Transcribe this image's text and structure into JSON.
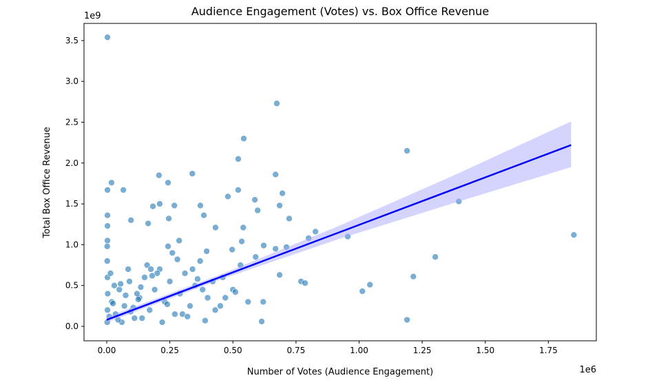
{
  "chart_data": {
    "type": "scatter",
    "title": "Audience Engagement (Votes) vs. Box Office Revenue",
    "x_label": "Number of Votes (Audience Engagement)",
    "y_label": "Total Box Office Revenue",
    "x_offset_label": "1e6",
    "y_offset_label": "1e9",
    "xlim": [
      -90000,
      1940000
    ],
    "ylim": [
      -177000000,
      3710000000
    ],
    "xticks": [
      {
        "value": 0,
        "label": "0.00"
      },
      {
        "value": 250000,
        "label": "0.25"
      },
      {
        "value": 500000,
        "label": "0.50"
      },
      {
        "value": 750000,
        "label": "0.75"
      },
      {
        "value": 1000000,
        "label": "1.00"
      },
      {
        "value": 1250000,
        "label": "1.25"
      },
      {
        "value": 1500000,
        "label": "1.50"
      },
      {
        "value": 1750000,
        "label": "1.75"
      }
    ],
    "yticks": [
      {
        "value": 0,
        "label": "0.0"
      },
      {
        "value": 500000000,
        "label": "0.5"
      },
      {
        "value": 1000000000,
        "label": "1.0"
      },
      {
        "value": 1500000000,
        "label": "1.5"
      },
      {
        "value": 2000000000,
        "label": "2.0"
      },
      {
        "value": 2500000000,
        "label": "2.5"
      },
      {
        "value": 3000000000,
        "label": "3.0"
      },
      {
        "value": 3500000000,
        "label": "3.5"
      }
    ],
    "series": [
      {
        "color": "#1f77b4",
        "x": [
          3000,
          674000,
          543000,
          1190000,
          339000,
          521000,
          207000,
          243000,
          19000,
          3000,
          66000,
          521000,
          669000,
          696000,
          587000,
          480000,
          1395000,
          685000,
          371000,
          268000,
          210000,
          183000,
          598000,
          723000,
          96000,
          164000,
          246000,
          385000,
          3000,
          3000,
          541000,
          431000,
          827000,
          1851000,
          955000,
          800000,
          287000,
          3000,
          2000,
          243000,
          535000,
          622000,
          712000,
          669000,
          1302000,
          497000,
          396000,
          1215000,
          685000,
          770000,
          786000,
          1043000,
          1013000,
          1190000,
          614000,
          390000,
          2000,
          3000,
          4000,
          3000,
          2000,
          20000,
          35000,
          50000,
          70000,
          90000,
          110000,
          130000,
          150000,
          170000,
          190000,
          210000,
          230000,
          250000,
          270000,
          290000,
          310000,
          330000,
          350000,
          370000,
          400000,
          430000,
          460000,
          500000,
          530000,
          560000,
          590000,
          30000,
          60000,
          85000,
          120000,
          140000,
          160000,
          200000,
          220000,
          260000,
          300000,
          340000,
          380000,
          420000,
          470000,
          15000,
          45000,
          75000,
          105000,
          135000,
          180000,
          240000,
          280000,
          320000,
          360000,
          450000,
          510000,
          620000,
          10000,
          25000,
          55000,
          95000,
          125000,
          175000
        ],
        "y": [
          3540000000,
          2730000000,
          2300000000,
          2150000000,
          1870000000,
          2050000000,
          1850000000,
          1760000000,
          1760000000,
          1670000000,
          1670000000,
          1670000000,
          1860000000,
          1630000000,
          1550000000,
          1590000000,
          1530000000,
          1480000000,
          1480000000,
          1480000000,
          1500000000,
          1470000000,
          1420000000,
          1320000000,
          1300000000,
          1260000000,
          1320000000,
          1360000000,
          1360000000,
          1230000000,
          1210000000,
          1210000000,
          1160000000,
          1120000000,
          1100000000,
          1080000000,
          1050000000,
          1050000000,
          980000000,
          980000000,
          1040000000,
          990000000,
          970000000,
          950000000,
          850000000,
          940000000,
          920000000,
          610000000,
          630000000,
          550000000,
          530000000,
          510000000,
          430000000,
          80000000,
          60000000,
          70000000,
          50000000,
          200000000,
          400000000,
          600000000,
          800000000,
          300000000,
          150000000,
          450000000,
          250000000,
          550000000,
          100000000,
          350000000,
          600000000,
          200000000,
          450000000,
          700000000,
          300000000,
          550000000,
          150000000,
          400000000,
          650000000,
          250000000,
          500000000,
          800000000,
          350000000,
          200000000,
          600000000,
          450000000,
          750000000,
          300000000,
          850000000,
          500000000,
          50000000,
          700000000,
          400000000,
          100000000,
          750000000,
          650000000,
          50000000,
          900000000,
          150000000,
          700000000,
          450000000,
          550000000,
          350000000,
          650000000,
          80000000,
          380000000,
          230000000,
          480000000,
          620000000,
          270000000,
          820000000,
          120000000,
          580000000,
          250000000,
          420000000,
          300000000,
          120000000,
          280000000,
          520000000,
          180000000,
          330000000,
          700000000
        ]
      }
    ],
    "regression": {
      "color": "#0000ff",
      "band_color": "#aaaaff",
      "x": [
        0,
        460000,
        920000,
        1380000,
        1840000
      ],
      "y": [
        80000000,
        615000000,
        1150000000,
        1685000000,
        2220000000
      ],
      "ci_upper": [
        115000000,
        645000000,
        1230000000,
        1855000000,
        2510000000
      ],
      "ci_lower": [
        45000000,
        585000000,
        1070000000,
        1515000000,
        1950000000
      ]
    }
  }
}
